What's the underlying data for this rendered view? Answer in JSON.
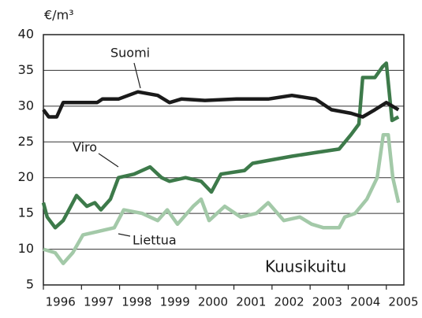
{
  "chart_data": {
    "type": "line",
    "y_label": "€/m³",
    "annotations": [
      "Kuusikuitu"
    ],
    "xlim": [
      1996,
      2005.46
    ],
    "xticks": [
      1996,
      1997,
      1998,
      1999,
      2000,
      2001,
      2002,
      2003,
      2004,
      2005
    ],
    "ylim": [
      5,
      40
    ],
    "yticks": [
      5,
      10,
      15,
      20,
      25,
      30,
      35,
      40
    ],
    "grid": true,
    "series": [
      {
        "name": "Suomi",
        "color": "#1a1a1a",
        "x": [
          1996.0,
          1996.14,
          1996.35,
          1996.52,
          1996.93,
          1997.41,
          1997.55,
          1997.97,
          1998.48,
          1999.0,
          1999.31,
          1999.62,
          2000.24,
          2001.07,
          2001.9,
          2002.52,
          2003.14,
          2003.56,
          2004.07,
          2004.38,
          2004.7,
          2005.0,
          2005.32
        ],
        "values": [
          29.5,
          28.5,
          28.5,
          30.5,
          30.5,
          30.5,
          31,
          31,
          32,
          31.5,
          30.5,
          31,
          30.8,
          31,
          31,
          31.5,
          31,
          29.5,
          29,
          28.5,
          29.5,
          30.5,
          29.5
        ]
      },
      {
        "name": "Viro",
        "color": "#3d7a4a",
        "x": [
          1996.0,
          1996.1,
          1996.31,
          1996.52,
          1996.72,
          1996.87,
          1997.14,
          1997.35,
          1997.51,
          1997.76,
          1997.97,
          1998.38,
          1998.8,
          1999.1,
          1999.31,
          1999.73,
          2000.14,
          2000.41,
          2000.66,
          2001.28,
          2001.49,
          2002.0,
          2002.52,
          2003.14,
          2003.76,
          2004.07,
          2004.28,
          2004.38,
          2004.7,
          2004.9,
          2005.0,
          2005.15,
          2005.32
        ],
        "values": [
          16.5,
          14.5,
          13,
          14,
          16,
          17.5,
          16,
          16.5,
          15.5,
          17,
          20,
          20.5,
          21.5,
          20,
          19.5,
          20,
          19.5,
          18,
          20.5,
          21,
          22,
          22.5,
          23,
          23.5,
          24,
          26,
          27.5,
          34,
          34,
          35.5,
          36,
          28,
          28.5
        ]
      },
      {
        "name": "Liettua",
        "color": "#a3c9a8",
        "x": [
          1996.0,
          1996.31,
          1996.52,
          1996.77,
          1997.04,
          1997.45,
          1997.86,
          1998.11,
          1998.59,
          1999.0,
          1999.25,
          1999.52,
          1999.93,
          2000.14,
          2000.35,
          2000.76,
          2001.18,
          2001.59,
          2001.9,
          2002.31,
          2002.73,
          2003.04,
          2003.35,
          2003.76,
          2003.91,
          2004.18,
          2004.49,
          2004.76,
          2004.92,
          2005.05,
          2005.17,
          2005.32
        ],
        "values": [
          10,
          9.5,
          8,
          9.5,
          12,
          12.5,
          13,
          15.5,
          15,
          14,
          15.5,
          13.5,
          16,
          17,
          14,
          16,
          14.5,
          15,
          16.5,
          14,
          14.5,
          13.5,
          13,
          13,
          14.5,
          15,
          17,
          20,
          26,
          26,
          20,
          16.5
        ]
      }
    ]
  }
}
